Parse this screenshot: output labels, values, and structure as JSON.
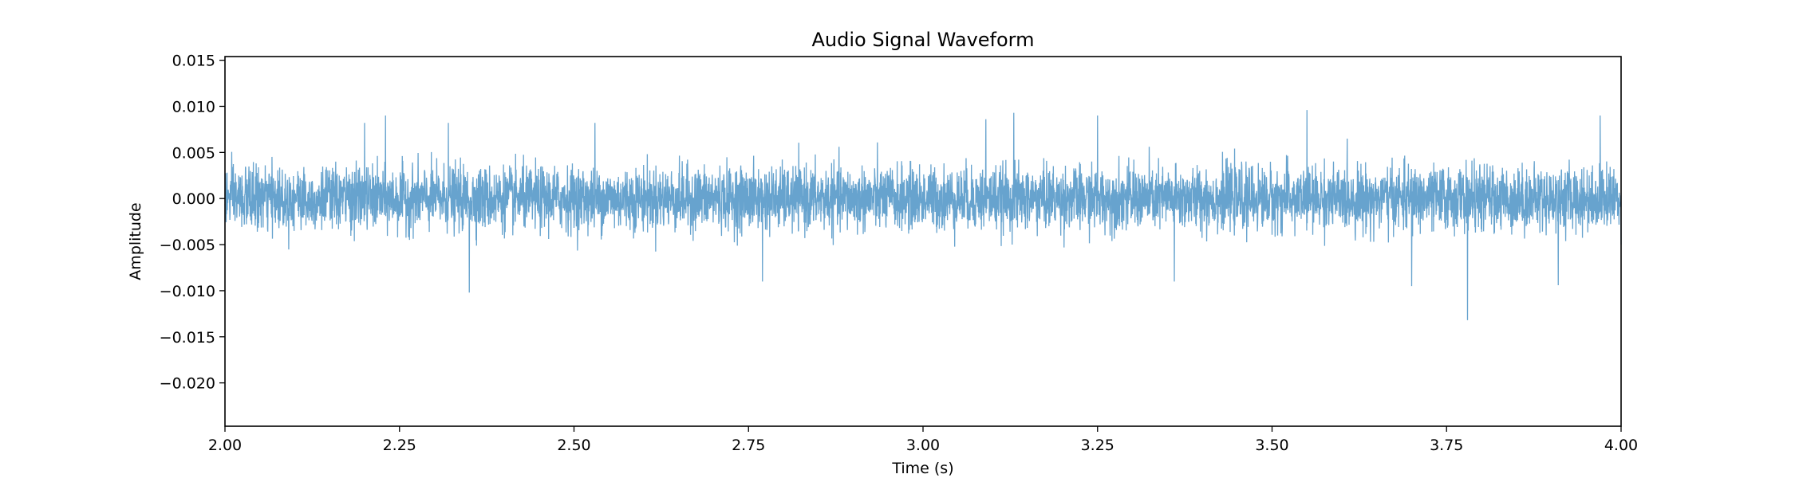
{
  "chart_data": {
    "type": "line",
    "title": "Audio Signal Waveform",
    "xlabel": "Time (s)",
    "ylabel": "Amplitude",
    "xlim": [
      2.0,
      4.0
    ],
    "ylim": [
      -0.0247,
      0.0154
    ],
    "xticks": [
      2.0,
      2.25,
      2.5,
      2.75,
      3.0,
      3.25,
      3.5,
      3.75,
      4.0
    ],
    "xtick_labels": [
      "2.00",
      "2.25",
      "2.50",
      "2.75",
      "3.00",
      "3.25",
      "3.50",
      "3.75",
      "4.00"
    ],
    "yticks": [
      0.015,
      0.01,
      0.005,
      0.0,
      -0.005,
      -0.01,
      -0.015,
      -0.02
    ],
    "ytick_labels": [
      "0.015",
      "0.010",
      "0.005",
      "0.000",
      "−0.005",
      "−0.010",
      "−0.015",
      "−0.020"
    ],
    "grid": false,
    "series": [
      {
        "color": "#5f9ecb",
        "style": "dense noise around 0, typical envelope ±0.004, occasional spikes",
        "peaks": [
          {
            "x": 2.2,
            "y": 0.0082
          },
          {
            "x": 2.23,
            "y": 0.009
          },
          {
            "x": 2.32,
            "y": 0.0082
          },
          {
            "x": 2.35,
            "y": -0.0102
          },
          {
            "x": 2.53,
            "y": 0.0082
          },
          {
            "x": 2.77,
            "y": -0.009
          },
          {
            "x": 3.09,
            "y": 0.0086
          },
          {
            "x": 3.13,
            "y": 0.0093
          },
          {
            "x": 3.25,
            "y": 0.009
          },
          {
            "x": 3.36,
            "y": -0.009
          },
          {
            "x": 3.55,
            "y": 0.0096
          },
          {
            "x": 3.7,
            "y": -0.0095
          },
          {
            "x": 3.78,
            "y": -0.0132
          },
          {
            "x": 3.91,
            "y": -0.0094
          },
          {
            "x": 3.97,
            "y": 0.009
          }
        ]
      }
    ]
  }
}
